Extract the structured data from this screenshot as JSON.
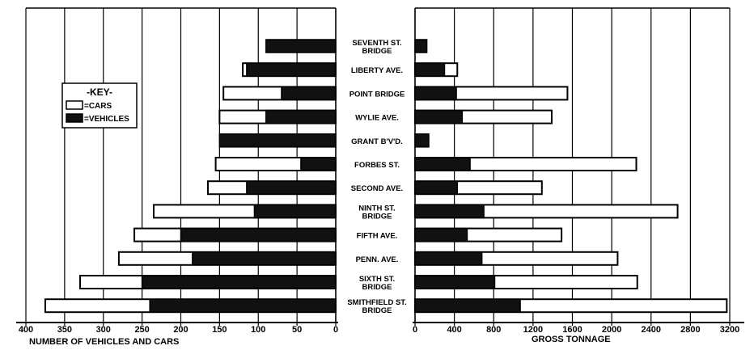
{
  "chart_data": [
    {
      "type": "bar",
      "orientation": "horizontal",
      "x_direction": "reversed",
      "xlabel": "NUMBER OF VEHICLES AND CARS",
      "xlim": [
        0,
        400
      ],
      "xticks": [
        "400",
        "350",
        "300",
        "250",
        "200",
        "150",
        "100",
        "50",
        "0"
      ],
      "grid": true,
      "categories": [
        "SEVENTH ST. BRIDGE",
        "LIBERTY AVE.",
        "POINT BRIDGE",
        "WYLIE AVE.",
        "GRANT B'V'D.",
        "FORBES ST.",
        "SECOND AVE.",
        "NINTH ST. BRIDGE",
        "FIFTH AVE.",
        "PENN. AVE.",
        "SIXTH ST. BRIDGE",
        "SMITHFIELD ST. BRIDGE"
      ],
      "series": [
        {
          "name": "CARS",
          "values": [
            0,
            120,
            145,
            150,
            0,
            155,
            165,
            235,
            260,
            280,
            330,
            375
          ]
        },
        {
          "name": "VEHICLES",
          "values": [
            90,
            115,
            70,
            90,
            150,
            45,
            115,
            105,
            200,
            185,
            250,
            240
          ]
        }
      ]
    },
    {
      "type": "bar",
      "orientation": "horizontal",
      "xlabel": "GROSS TONNAGE",
      "xlim": [
        0,
        3200
      ],
      "xticks": [
        "0",
        "400",
        "800",
        "1200",
        "1600",
        "2000",
        "2400",
        "2800",
        "3200"
      ],
      "grid": true,
      "categories": [
        "SEVENTH ST. BRIDGE",
        "LIBERTY AVE.",
        "POINT BRIDGE",
        "WYLIE AVE.",
        "GRANT B'V'D.",
        "FORBES ST.",
        "SECOND AVE.",
        "NINTH ST. BRIDGE",
        "FIFTH AVE.",
        "PENN. AVE.",
        "SIXTH ST. BRIDGE",
        "SMITHFIELD ST. BRIDGE"
      ],
      "series": [
        {
          "name": "CARS",
          "values": [
            0,
            430,
            1550,
            1390,
            0,
            2250,
            1290,
            2670,
            1490,
            2060,
            2260,
            3170
          ]
        },
        {
          "name": "VEHICLES",
          "values": [
            120,
            300,
            420,
            480,
            140,
            560,
            430,
            700,
            530,
            680,
            810,
            1070
          ]
        }
      ]
    }
  ],
  "labels": [
    {
      "line1": "SEVENTH ST.",
      "line2": "BRIDGE"
    },
    {
      "line1": "LIBERTY AVE.",
      "line2": ""
    },
    {
      "line1": "POINT BRIDGE",
      "line2": ""
    },
    {
      "line1": "WYLIE AVE.",
      "line2": ""
    },
    {
      "line1": "GRANT B'V'D.",
      "line2": ""
    },
    {
      "line1": "FORBES ST.",
      "line2": ""
    },
    {
      "line1": "SECOND AVE.",
      "line2": ""
    },
    {
      "line1": "NINTH ST.",
      "line2": "BRIDGE"
    },
    {
      "line1": "FIFTH AVE.",
      "line2": ""
    },
    {
      "line1": "PENN. AVE.",
      "line2": ""
    },
    {
      "line1": "SIXTH ST.",
      "line2": "BRIDGE"
    },
    {
      "line1": "SMITHFIELD ST.",
      "line2": "BRIDGE"
    }
  ],
  "legend": {
    "title": "-KEY-",
    "placement": "left",
    "items": [
      {
        "label": "=CARS",
        "color": "#ffffff"
      },
      {
        "label": "=VEHICLES",
        "color": "#111111"
      }
    ]
  },
  "colors": {
    "ink": "#000000",
    "cars": "#ffffff",
    "vehicles": "#111111"
  }
}
